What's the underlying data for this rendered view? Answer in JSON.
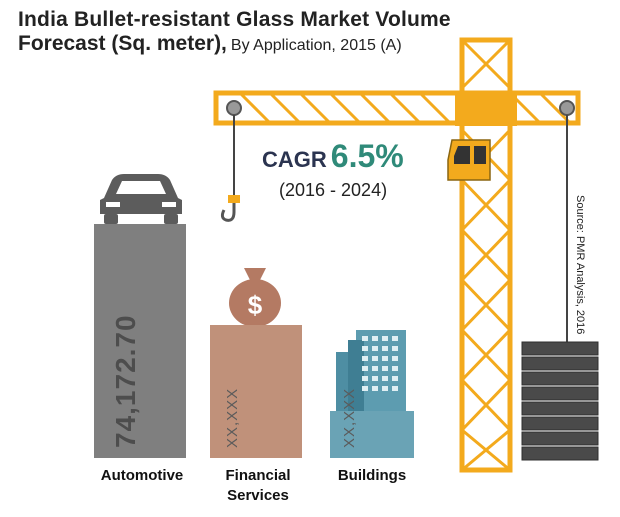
{
  "title": {
    "line1": "India Bullet-resistant Glass Market Volume",
    "line2": "Forecast (Sq. meter),",
    "subtitle": "By Application, 2015 (A)"
  },
  "cagr": {
    "label": "CAGR",
    "value": "6.5%",
    "period": "(2016 - 2024)"
  },
  "source": "Source: PMR Analysis, 2016",
  "colors": {
    "automotive": "#7f7f7f",
    "financial": "#c0917a",
    "buildings": "#6aa3b5",
    "crane": "#f3aa1d"
  },
  "chart_data": {
    "type": "bar",
    "categories": [
      "Automotive",
      "Financial Services",
      "Buildings"
    ],
    "category_lines": [
      [
        "Automotive"
      ],
      [
        "Financial",
        "Services"
      ],
      [
        "Buildings"
      ]
    ],
    "values": [
      74172.7,
      null,
      null
    ],
    "value_labels": [
      "74,172.70",
      "XX,XXX",
      "XX,XXX"
    ]
  }
}
